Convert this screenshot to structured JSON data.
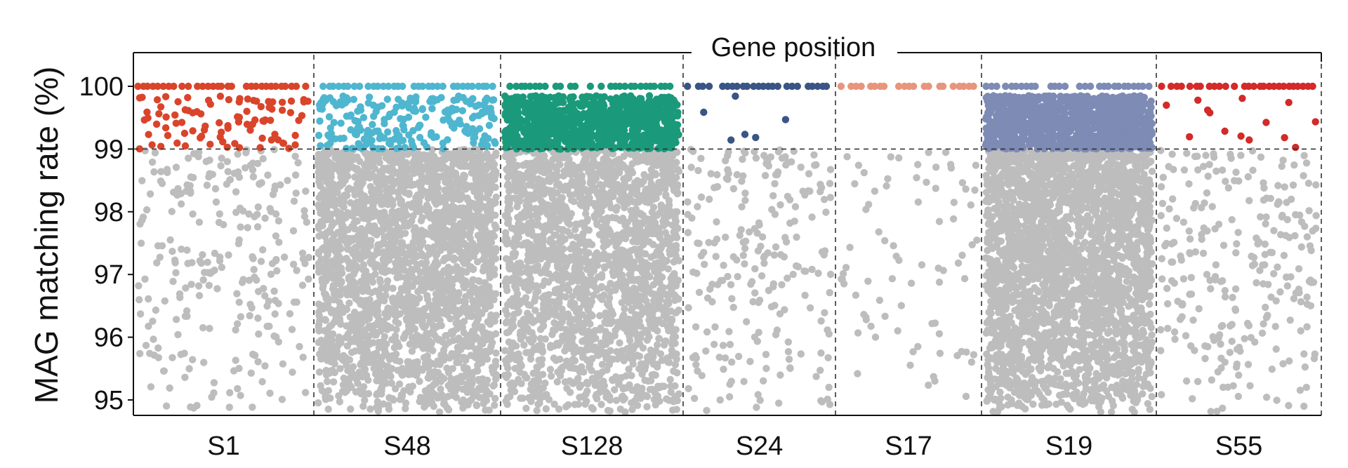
{
  "chart_data": {
    "type": "scatter",
    "title": "Gene position",
    "xlabel": "",
    "ylabel": "MAG matching rate (%)",
    "ylim": [
      94.75,
      100.3
    ],
    "yticks": [
      95,
      96,
      97,
      98,
      99,
      100
    ],
    "threshold": 99,
    "grid": false,
    "below_threshold_color": "#bdbdbd",
    "samples": [
      {
        "name": "S1",
        "color": "#d9452b",
        "high_count": 90,
        "low_count": 260,
        "has_100": true
      },
      {
        "name": "S48",
        "color": "#4fb6cf",
        "high_count": 220,
        "low_count": 2400,
        "has_100": true
      },
      {
        "name": "S128",
        "color": "#1a9a7a",
        "high_count": 900,
        "low_count": 2000,
        "has_100": true
      },
      {
        "name": "S24",
        "color": "#3a5585",
        "high_count": 6,
        "low_count": 230,
        "has_100": true
      },
      {
        "name": "S17",
        "color": "#e8957d",
        "high_count": 0,
        "low_count": 80,
        "has_100": true
      },
      {
        "name": "S19",
        "color": "#7d8bb5",
        "high_count": 1100,
        "low_count": 2700,
        "has_100": true
      },
      {
        "name": "S55",
        "color": "#d32a2a",
        "high_count": 14,
        "low_count": 260,
        "has_100": true
      }
    ]
  }
}
